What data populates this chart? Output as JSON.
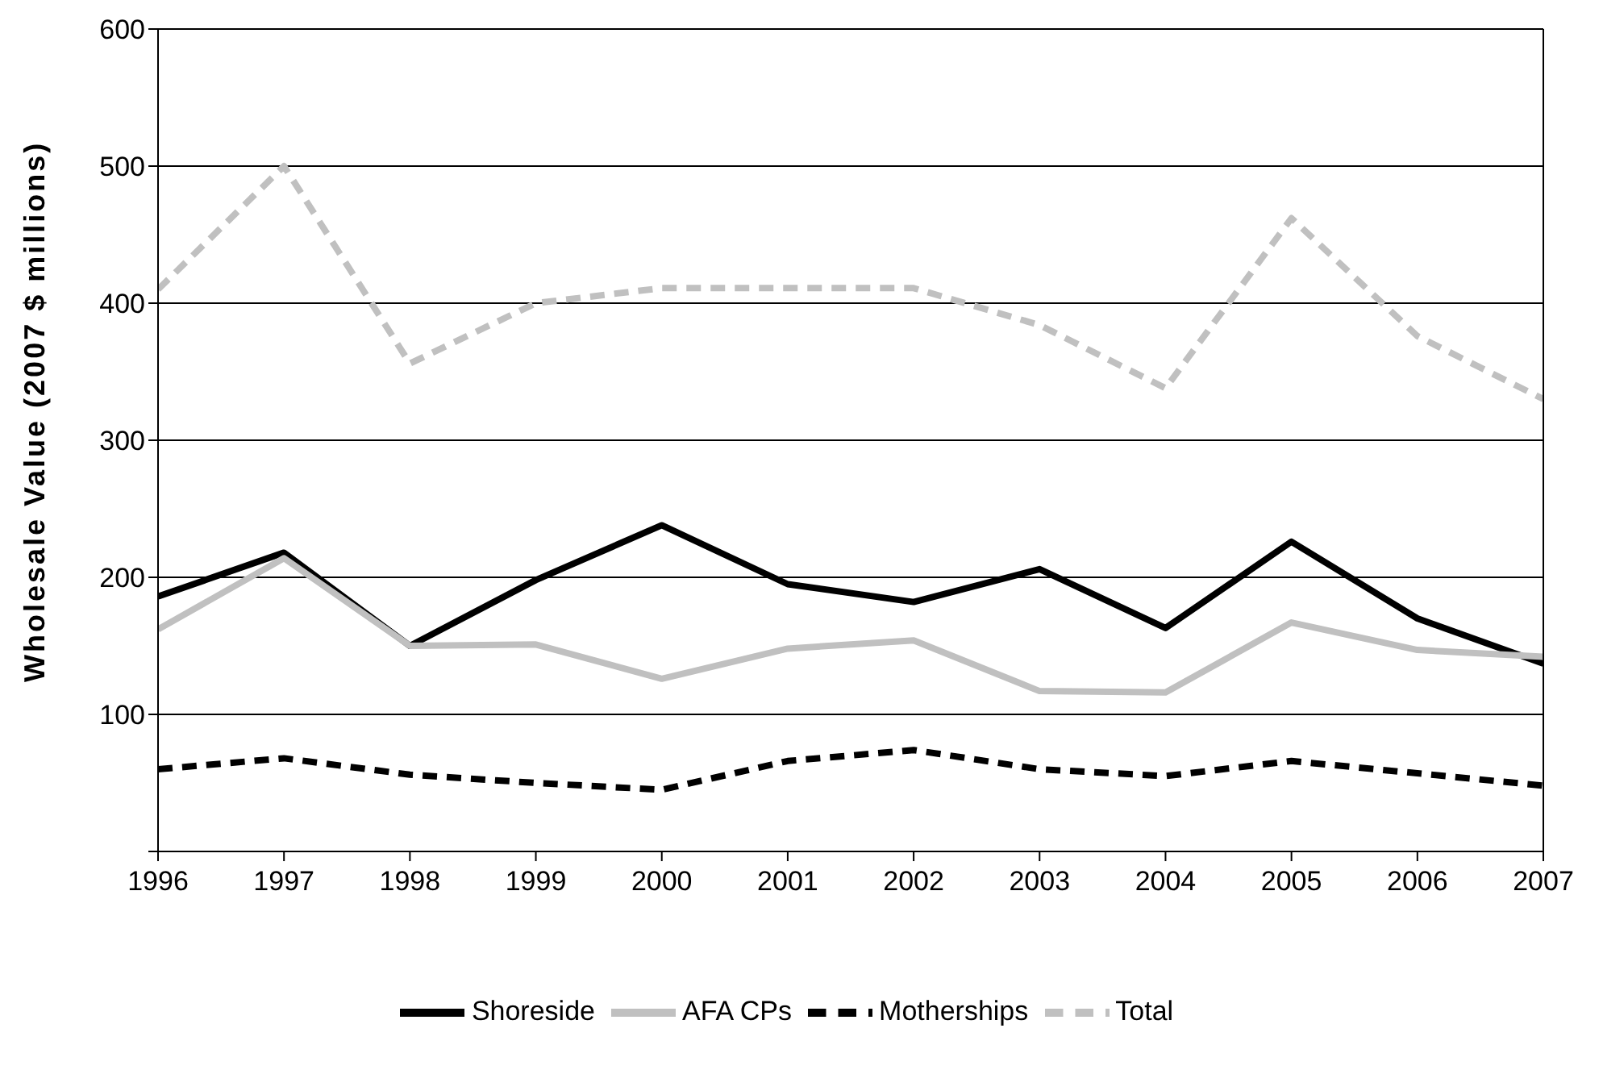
{
  "chart_data": {
    "type": "line",
    "ylabel": "Wholesale Value (2007 $ millions)",
    "x": [
      1996,
      1997,
      1998,
      1999,
      2000,
      2001,
      2002,
      2003,
      2004,
      2005,
      2006,
      2007
    ],
    "xlim": [
      1996,
      2007
    ],
    "xticks": [
      1996,
      1997,
      1998,
      1999,
      2000,
      2001,
      2002,
      2003,
      2004,
      2005,
      2006,
      2007
    ],
    "ylim": [
      0,
      600
    ],
    "yticks": [
      {
        "value": 0,
        "label": null
      },
      100,
      200,
      300,
      400,
      500,
      600
    ],
    "grid": "y",
    "legend": "bottom",
    "marker": "none",
    "series": [
      {
        "name": "Shoreside",
        "color": "#000000",
        "line_style": "solid",
        "values": [
          186,
          218,
          150,
          198,
          238,
          195,
          182,
          206,
          163,
          226,
          170,
          137
        ]
      },
      {
        "name": "AFA CPs",
        "color": "#c0c0c0",
        "line_style": "solid",
        "values": [
          162,
          214,
          150,
          151,
          126,
          148,
          154,
          117,
          116,
          167,
          147,
          142
        ]
      },
      {
        "name": "Motherships",
        "color": "#000000",
        "line_style": "dashed",
        "values": [
          60,
          68,
          56,
          50,
          45,
          66,
          74,
          60,
          55,
          66,
          57,
          48
        ]
      },
      {
        "name": "Total",
        "color": "#c0c0c0",
        "line_style": "dashed",
        "values": [
          410,
          500,
          356,
          400,
          411,
          411,
          411,
          384,
          338,
          462,
          376,
          330
        ]
      }
    ]
  }
}
